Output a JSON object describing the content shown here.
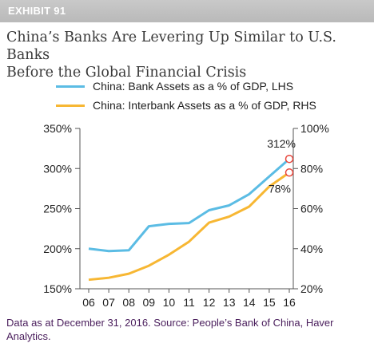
{
  "exhibit": {
    "label": "EXHIBIT 91"
  },
  "header": {
    "title_line1": "China’s Banks Are Levering Up Similar to U.S. Banks",
    "title_line2": "Before the Global Financial Crisis"
  },
  "colors": {
    "bank_assets": "#5bbce4",
    "interbank_assets": "#f7b733",
    "marker": "#e8463c",
    "axis": "#555555"
  },
  "chart_data": {
    "type": "line",
    "x": [
      "06",
      "07",
      "08",
      "09",
      "10",
      "11",
      "12",
      "13",
      "14",
      "15",
      "16"
    ],
    "series": [
      {
        "name": "China: Bank Assets as a % of GDP, LHS",
        "axis": "left",
        "values": [
          200,
          197,
          198,
          228,
          231,
          232,
          248,
          254,
          268,
          290,
          312
        ]
      },
      {
        "name": "China: Interbank Assets as a % of GDP, RHS",
        "axis": "right",
        "values": [
          24.5,
          25.5,
          27.5,
          31.5,
          37,
          43.5,
          53,
          56,
          61,
          71,
          78
        ]
      }
    ],
    "left_axis": {
      "min": 150,
      "max": 350,
      "ticks": [
        "150%",
        "200%",
        "250%",
        "300%",
        "350%"
      ]
    },
    "right_axis": {
      "min": 20,
      "max": 100,
      "ticks": [
        "20%",
        "40%",
        "60%",
        "80%",
        "100%"
      ]
    },
    "annotations": [
      {
        "series": 0,
        "label": "312%"
      },
      {
        "series": 1,
        "label": "78%"
      }
    ],
    "grid": false,
    "legend_position": "top-left"
  },
  "footer": {
    "note": "Data as at December 31, 2016. Source: People’s Bank of China, Haver Analytics."
  }
}
